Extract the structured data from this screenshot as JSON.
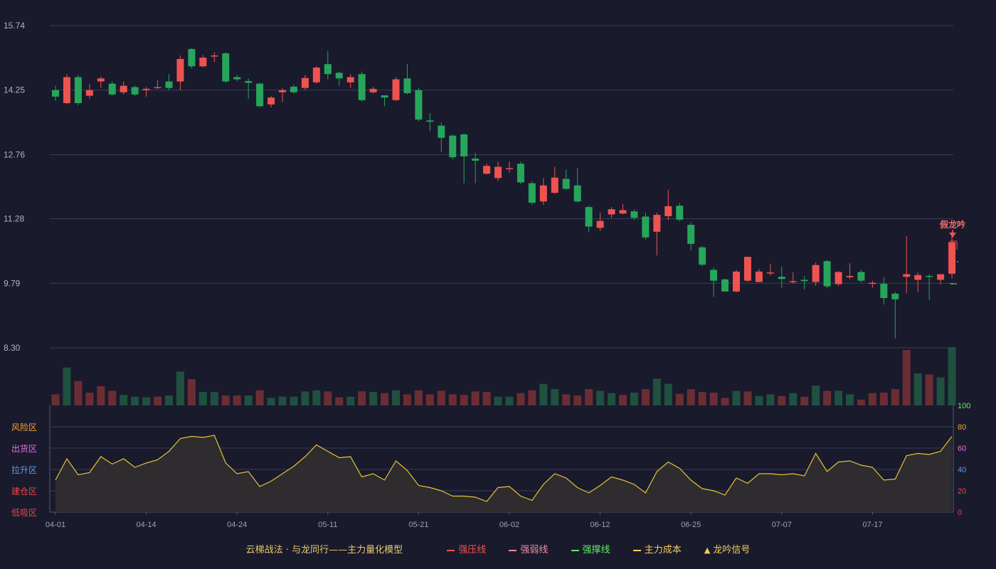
{
  "chart_data": {
    "type": "candlestick",
    "y_ticks": [
      "15.74",
      "14.25",
      "12.76",
      "11.28",
      "9.79",
      "8.30"
    ],
    "ylim": [
      8.3,
      15.74
    ],
    "x_ticks": [
      {
        "i": 0,
        "label": "04-01"
      },
      {
        "i": 8,
        "label": "04-14"
      },
      {
        "i": 16,
        "label": "04-24"
      },
      {
        "i": 24,
        "label": "05-11"
      },
      {
        "i": 32,
        "label": "05-21"
      },
      {
        "i": 40,
        "label": "06-02"
      },
      {
        "i": 48,
        "label": "06-12"
      },
      {
        "i": 56,
        "label": "06-25"
      },
      {
        "i": 64,
        "label": "07-07"
      },
      {
        "i": 72,
        "label": "07-17"
      }
    ],
    "candles": [
      [
        14.25,
        14.1,
        14.35,
        14.0
      ],
      [
        13.95,
        14.55,
        14.62,
        13.92
      ],
      [
        14.55,
        13.95,
        14.6,
        13.9
      ],
      [
        14.12,
        14.25,
        14.4,
        14.05
      ],
      [
        14.45,
        14.52,
        14.56,
        14.3
      ],
      [
        14.4,
        14.15,
        14.45,
        14.12
      ],
      [
        14.2,
        14.35,
        14.45,
        14.15
      ],
      [
        14.32,
        14.15,
        14.35,
        14.12
      ],
      [
        14.25,
        14.28,
        14.32,
        14.1
      ],
      [
        14.3,
        14.32,
        14.48,
        14.28
      ],
      [
        14.45,
        14.3,
        14.62,
        14.25
      ],
      [
        14.45,
        14.97,
        15.05,
        14.25
      ],
      [
        15.2,
        14.8,
        15.22,
        14.75
      ],
      [
        14.8,
        15.0,
        15.06,
        14.78
      ],
      [
        15.03,
        15.05,
        15.12,
        14.9
      ],
      [
        15.1,
        14.45,
        15.12,
        14.42
      ],
      [
        14.55,
        14.5,
        14.6,
        14.45
      ],
      [
        14.46,
        14.42,
        14.52,
        14.05
      ],
      [
        14.4,
        13.88,
        14.42,
        13.85
      ],
      [
        13.92,
        14.08,
        14.12,
        13.85
      ],
      [
        14.2,
        14.25,
        14.3,
        13.97
      ],
      [
        14.33,
        14.2,
        14.38,
        14.18
      ],
      [
        14.3,
        14.53,
        14.6,
        14.26
      ],
      [
        14.43,
        14.77,
        14.8,
        14.4
      ],
      [
        14.85,
        14.62,
        15.15,
        14.5
      ],
      [
        14.65,
        14.52,
        14.68,
        14.35
      ],
      [
        14.43,
        14.55,
        14.62,
        14.3
      ],
      [
        14.62,
        14.02,
        14.68,
        13.98
      ],
      [
        14.2,
        14.28,
        14.33,
        14.17
      ],
      [
        14.13,
        14.08,
        14.12,
        13.88
      ],
      [
        14.02,
        14.5,
        14.55,
        14.0
      ],
      [
        14.52,
        14.18,
        14.85,
        14.15
      ],
      [
        14.25,
        13.57,
        14.3,
        13.53
      ],
      [
        13.55,
        13.52,
        13.72,
        13.3
      ],
      [
        13.43,
        13.15,
        13.5,
        12.82
      ],
      [
        13.2,
        12.7,
        13.22,
        12.65
      ],
      [
        13.23,
        12.72,
        13.24,
        12.1
      ],
      [
        12.67,
        12.62,
        12.8,
        12.1
      ],
      [
        12.32,
        12.5,
        12.55,
        12.3
      ],
      [
        12.22,
        12.48,
        12.6,
        12.15
      ],
      [
        12.45,
        12.45,
        12.6,
        12.35
      ],
      [
        12.55,
        12.12,
        12.6,
        12.08
      ],
      [
        12.1,
        11.65,
        12.15,
        11.6
      ],
      [
        11.68,
        12.05,
        12.22,
        11.6
      ],
      [
        11.88,
        12.23,
        12.48,
        11.85
      ],
      [
        12.2,
        11.97,
        12.42,
        11.95
      ],
      [
        12.05,
        11.68,
        12.45,
        11.65
      ],
      [
        11.55,
        11.1,
        11.58,
        10.97
      ],
      [
        11.07,
        11.23,
        11.42,
        11.0
      ],
      [
        11.38,
        11.5,
        11.55,
        11.3
      ],
      [
        11.4,
        11.48,
        11.62,
        11.38
      ],
      [
        11.45,
        11.3,
        11.5,
        11.25
      ],
      [
        11.33,
        10.85,
        11.42,
        10.8
      ],
      [
        10.98,
        11.37,
        11.42,
        10.43
      ],
      [
        11.34,
        11.57,
        11.95,
        11.25
      ],
      [
        11.58,
        11.26,
        11.65,
        11.22
      ],
      [
        11.14,
        10.7,
        11.2,
        10.55
      ],
      [
        10.62,
        10.22,
        10.65,
        10.18
      ],
      [
        10.1,
        9.85,
        10.15,
        9.48
      ],
      [
        9.88,
        9.6,
        9.9,
        9.6
      ],
      [
        9.6,
        10.06,
        10.1,
        9.58
      ],
      [
        9.85,
        10.4,
        10.4,
        9.82
      ],
      [
        9.82,
        10.06,
        10.12,
        9.81
      ],
      [
        10.02,
        10.04,
        10.24,
        9.97
      ],
      [
        9.94,
        9.89,
        10.17,
        9.69
      ],
      [
        9.82,
        9.84,
        10.04,
        9.78
      ],
      [
        9.87,
        9.84,
        9.96,
        9.65
      ],
      [
        9.82,
        10.21,
        10.27,
        9.73
      ],
      [
        10.3,
        9.72,
        10.33,
        9.68
      ],
      [
        9.77,
        10.05,
        10.07,
        9.73
      ],
      [
        9.93,
        9.96,
        10.25,
        9.88
      ],
      [
        10.05,
        9.85,
        10.1,
        9.81
      ],
      [
        9.8,
        9.8,
        9.85,
        9.69
      ],
      [
        9.78,
        9.45,
        9.94,
        9.3
      ],
      [
        9.55,
        9.42,
        9.59,
        8.51
      ],
      [
        9.94,
        10.0,
        10.88,
        9.57
      ],
      [
        9.87,
        9.98,
        10.04,
        9.59
      ],
      [
        9.96,
        9.95,
        10.0,
        9.41
      ],
      [
        9.87,
        10.0,
        9.97,
        9.76
      ],
      [
        10.01,
        10.74,
        10.98,
        9.9
      ]
    ],
    "volumes": [
      [
        0.19,
        "u"
      ],
      [
        0.65,
        "d"
      ],
      [
        0.42,
        "u"
      ],
      [
        0.22,
        "u"
      ],
      [
        0.33,
        "u"
      ],
      [
        0.25,
        "u"
      ],
      [
        0.18,
        "d"
      ],
      [
        0.15,
        "d"
      ],
      [
        0.14,
        "d"
      ],
      [
        0.15,
        "u"
      ],
      [
        0.17,
        "d"
      ],
      [
        0.58,
        "d"
      ],
      [
        0.45,
        "u"
      ],
      [
        0.23,
        "d"
      ],
      [
        0.23,
        "d"
      ],
      [
        0.17,
        "u"
      ],
      [
        0.17,
        "u"
      ],
      [
        0.17,
        "d"
      ],
      [
        0.26,
        "u"
      ],
      [
        0.13,
        "d"
      ],
      [
        0.15,
        "d"
      ],
      [
        0.15,
        "d"
      ],
      [
        0.24,
        "d"
      ],
      [
        0.26,
        "d"
      ],
      [
        0.24,
        "u"
      ],
      [
        0.14,
        "u"
      ],
      [
        0.15,
        "d"
      ],
      [
        0.24,
        "u"
      ],
      [
        0.23,
        "d"
      ],
      [
        0.21,
        "u"
      ],
      [
        0.26,
        "d"
      ],
      [
        0.19,
        "u"
      ],
      [
        0.26,
        "u"
      ],
      [
        0.19,
        "u"
      ],
      [
        0.25,
        "u"
      ],
      [
        0.19,
        "u"
      ],
      [
        0.18,
        "u"
      ],
      [
        0.24,
        "u"
      ],
      [
        0.23,
        "u"
      ],
      [
        0.15,
        "d"
      ],
      [
        0.15,
        "d"
      ],
      [
        0.21,
        "u"
      ],
      [
        0.26,
        "u"
      ],
      [
        0.37,
        "d"
      ],
      [
        0.28,
        "d"
      ],
      [
        0.19,
        "u"
      ],
      [
        0.17,
        "u"
      ],
      [
        0.28,
        "u"
      ],
      [
        0.25,
        "d"
      ],
      [
        0.21,
        "d"
      ],
      [
        0.18,
        "u"
      ],
      [
        0.22,
        "d"
      ],
      [
        0.28,
        "u"
      ],
      [
        0.46,
        "d"
      ],
      [
        0.37,
        "d"
      ],
      [
        0.2,
        "u"
      ],
      [
        0.28,
        "u"
      ],
      [
        0.23,
        "u"
      ],
      [
        0.22,
        "u"
      ],
      [
        0.13,
        "u"
      ],
      [
        0.25,
        "d"
      ],
      [
        0.24,
        "u"
      ],
      [
        0.16,
        "d"
      ],
      [
        0.19,
        "d"
      ],
      [
        0.16,
        "u"
      ],
      [
        0.21,
        "d"
      ],
      [
        0.15,
        "u"
      ],
      [
        0.34,
        "d"
      ],
      [
        0.25,
        "u"
      ],
      [
        0.25,
        "d"
      ],
      [
        0.19,
        "d"
      ],
      [
        0.1,
        "u"
      ],
      [
        0.21,
        "u"
      ],
      [
        0.22,
        "u"
      ],
      [
        0.28,
        "u"
      ],
      [
        0.95,
        "u"
      ],
      [
        0.55,
        "d"
      ],
      [
        0.53,
        "u"
      ],
      [
        0.48,
        "d"
      ],
      [
        1.0,
        "d"
      ]
    ],
    "osc_values": [
      30,
      50,
      35,
      37,
      52,
      45,
      50,
      42,
      46,
      49,
      57,
      69,
      71,
      70,
      72,
      46,
      36,
      38,
      24,
      29,
      36,
      43,
      52,
      63,
      57,
      51,
      52,
      33,
      36,
      30,
      48,
      39,
      25,
      23,
      20,
      15,
      15,
      14,
      10,
      23,
      24,
      15,
      11,
      26,
      36,
      32,
      23,
      18,
      25,
      33,
      30,
      26,
      18,
      38,
      47,
      41,
      30,
      22,
      20,
      16,
      32,
      27,
      36,
      36,
      35,
      36,
      34,
      55,
      38,
      47,
      48,
      44,
      42,
      30,
      31,
      53,
      55,
      54,
      57,
      71
    ],
    "osc_ticks": [
      "100",
      "80",
      "60",
      "40",
      "20",
      "0"
    ],
    "zones": [
      {
        "label": "风险区",
        "color": "#f0a43a"
      },
      {
        "label": "出货区",
        "color": "#e86be8"
      },
      {
        "label": "拉升区",
        "color": "#5c9cf0"
      },
      {
        "label": "建仓区",
        "color": "#e8484a"
      },
      {
        "label": "低吸区",
        "color": "#e8484a"
      }
    ],
    "signal": {
      "label": "假龙吟",
      "index": 79,
      "price": 10.98
    },
    "colors": {
      "up": "#ef5350",
      "down": "#26a65b",
      "vol_up": "#6b2d34",
      "vol_down": "#1f5040",
      "osc": "#e6c233",
      "grid": "#3a3c55",
      "bg": "#191a2c"
    }
  },
  "legend": {
    "title": "云梯战法 · 与龙同行——主力量化模型",
    "items": [
      {
        "label": "强压线",
        "color": "#ef5350",
        "style": "solid"
      },
      {
        "label": "强弱线",
        "color": "#f08ba0",
        "style": "dash"
      },
      {
        "label": "强撑线",
        "color": "#5cf060",
        "style": "solid"
      },
      {
        "label": "主力成本",
        "color": "#f2cf5b",
        "style": "dash"
      },
      {
        "label": "龙吟信号",
        "color": "#f2cf5b",
        "style": "tri"
      }
    ]
  }
}
